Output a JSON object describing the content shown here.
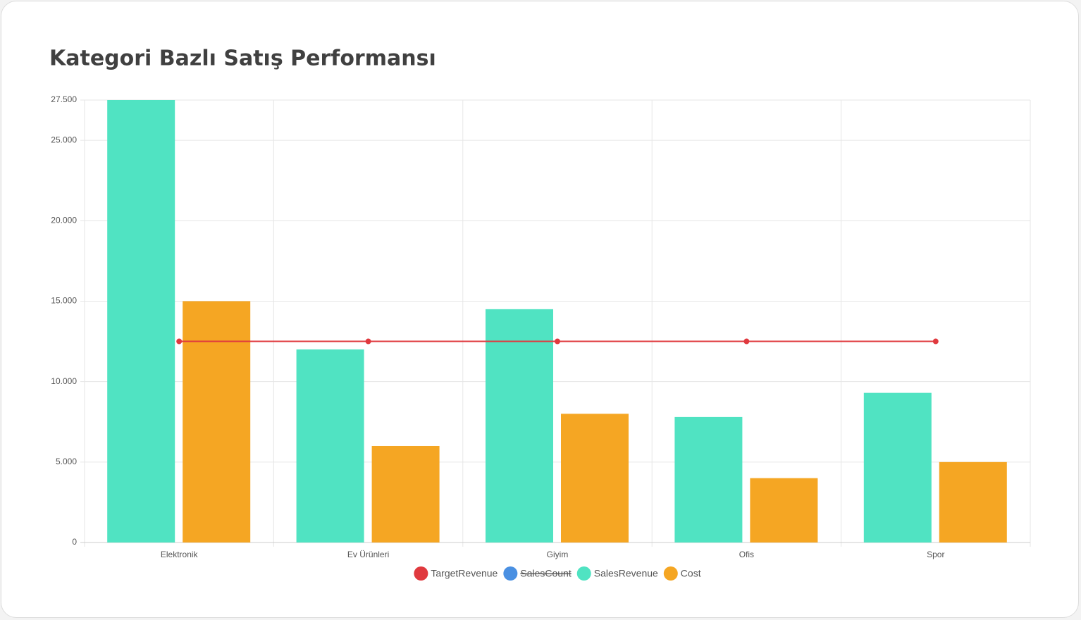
{
  "chart_data": {
    "type": "bar",
    "title": "Kategori Bazlı Satış Performansı",
    "categories": [
      "Elektronik",
      "Ev Ürünleri",
      "Giyim",
      "Ofis",
      "Spor"
    ],
    "series": [
      {
        "name": "TargetRevenue",
        "color": "#e0393e",
        "type": "line",
        "values": [
          12500,
          12500,
          12500,
          12500,
          12500
        ]
      },
      {
        "name": "SalesCount",
        "color": "#4a90e2",
        "hidden": true,
        "values": [
          null,
          null,
          null,
          null,
          null
        ]
      },
      {
        "name": "SalesRevenue",
        "color": "#50e3c2",
        "type": "bar",
        "values": [
          27500,
          12000,
          14500,
          7800,
          9300
        ]
      },
      {
        "name": "Cost",
        "color": "#f5a623",
        "type": "bar",
        "values": [
          15000,
          6000,
          8000,
          4000,
          5000
        ]
      }
    ],
    "ylim": [
      0,
      27500
    ],
    "yticks": [
      0,
      {
        "value": 5000,
        "label": "5.000"
      },
      {
        "value": 10000,
        "label": "10.000"
      },
      {
        "value": 15000,
        "label": "15.000"
      },
      {
        "value": 20000,
        "label": "20.000"
      },
      {
        "value": 25000,
        "label": "25.000"
      },
      {
        "value": 27500,
        "label": "27.500"
      }
    ],
    "grid": true,
    "legend": "bottom"
  }
}
